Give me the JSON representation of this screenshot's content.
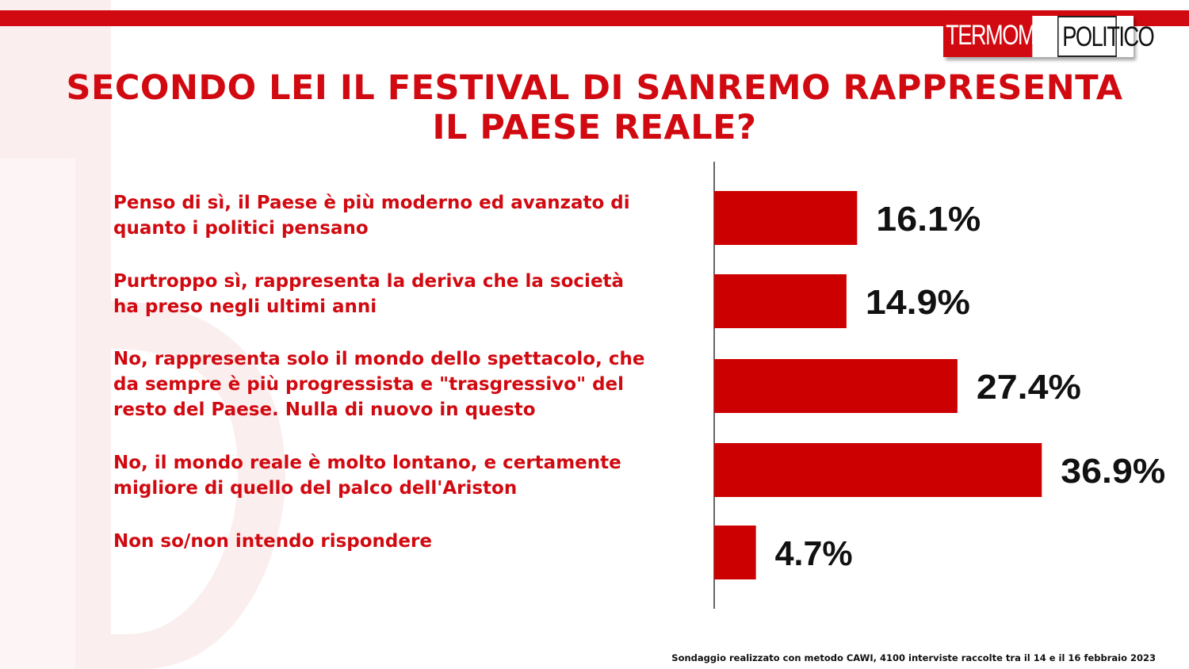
{
  "logo": {
    "part1": "TERMOMETRO",
    "part2": "POLITICO"
  },
  "title_line1": "SECONDO LEI IL FESTIVAL DI SANREMO RAPPRESENTA",
  "title_line2": "IL PAESE REALE?",
  "chart_data": {
    "type": "bar",
    "orientation": "horizontal",
    "categories": [
      "Penso di sì, il Paese è più moderno ed avanzato di quanto i politici pensano",
      "Purtroppo sì, rappresenta la deriva che la società ha preso negli ultimi anni",
      "No, rappresenta solo il mondo dello spettacolo, che da sempre è più progressista e \"trasgressivo\" del resto del Paese. Nulla di nuovo in questo",
      "No, il mondo reale è molto lontano, e certamente migliore di quello del palco dell'Ariston",
      "Non so/non intendo rispondere"
    ],
    "values": [
      16.1,
      14.9,
      27.4,
      36.9,
      4.7
    ],
    "data_labels": [
      "16.1%",
      "14.9%",
      "27.4%",
      "36.9%",
      "4.7%"
    ],
    "bar_color": "#cc0000",
    "grid": false,
    "legend": "none"
  },
  "labels": [
    [
      "Penso di sì, il Paese è più moderno ed avanzato di",
      "quanto i politici pensano"
    ],
    [
      "Purtroppo sì, rappresenta la deriva che la società",
      "ha preso negli ultimi anni"
    ],
    [
      "No, rappresenta solo il mondo dello spettacolo, che",
      "da sempre è più progressista e \"trasgressivo\" del",
      "resto del Paese. Nulla di nuovo in questo"
    ],
    [
      "No, il mondo reale è molto lontano, e certamente",
      "migliore di quello del palco dell'Ariston"
    ],
    [
      "Non so/non intendo rispondere"
    ]
  ],
  "footer": "Sondaggio realizzato con metodo CAWI, 4100 interviste raccolte tra il 14 e il 16 febbraio 2023",
  "colors": {
    "accent": "#d10a11",
    "bar": "#cc0000"
  }
}
